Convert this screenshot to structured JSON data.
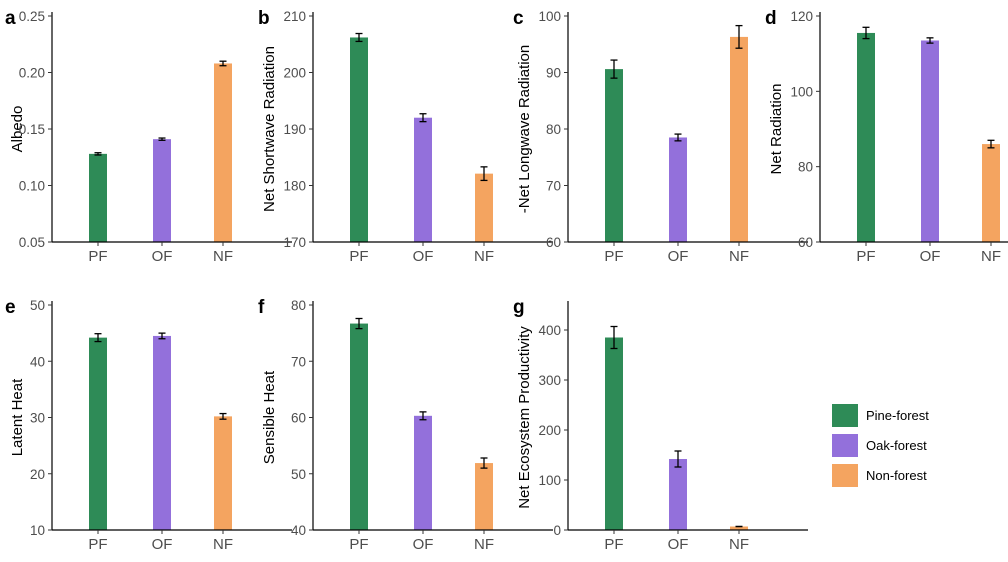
{
  "categories": [
    "PF",
    "OF",
    "NF"
  ],
  "colors": {
    "PF": "#2e8b57",
    "OF": "#9370db",
    "NF": "#f4a460"
  },
  "legend": [
    {
      "label": "Pine-forest",
      "color": "#2e8b57"
    },
    {
      "label": "Oak-forest",
      "color": "#9370db"
    },
    {
      "label": "Non-forest",
      "color": "#f4a460"
    }
  ],
  "chart_data": [
    {
      "type": "bar",
      "letter": "a",
      "ylabel": "Albedo",
      "ylim": [
        0.05,
        0.25
      ],
      "ticks": [
        "0.05",
        "0.10",
        "0.15",
        "0.20",
        "0.25"
      ],
      "categories": [
        "PF",
        "OF",
        "NF"
      ],
      "values": [
        0.128,
        0.141,
        0.208
      ],
      "errors": [
        0.001,
        0.001,
        0.002
      ]
    },
    {
      "type": "bar",
      "letter": "b",
      "ylabel": "Net Shortwave Radiation",
      "ylim": [
        170,
        210
      ],
      "ticks": [
        "170",
        "180",
        "190",
        "200",
        "210"
      ],
      "categories": [
        "PF",
        "OF",
        "NF"
      ],
      "values": [
        206.2,
        192.0,
        182.1
      ],
      "errors": [
        0.7,
        0.7,
        1.2
      ]
    },
    {
      "type": "bar",
      "letter": "c",
      "ylabel": "-Net Longwave Radiation",
      "ylim": [
        60,
        100
      ],
      "ticks": [
        "60",
        "70",
        "80",
        "90",
        "100"
      ],
      "categories": [
        "PF",
        "OF",
        "NF"
      ],
      "values": [
        90.6,
        78.5,
        96.3
      ],
      "errors": [
        1.6,
        0.6,
        2.0
      ]
    },
    {
      "type": "bar",
      "letter": "d",
      "ylabel": "Net Radiation",
      "ylim": [
        60,
        120
      ],
      "ticks": [
        "60",
        "80",
        "100",
        "120"
      ],
      "categories": [
        "PF",
        "OF",
        "NF"
      ],
      "values": [
        115.5,
        113.5,
        86.0
      ],
      "errors": [
        1.5,
        0.7,
        1.0
      ]
    },
    {
      "type": "bar",
      "letter": "e",
      "ylabel": "Latent Heat",
      "ylim": [
        10,
        50
      ],
      "ticks": [
        "10",
        "20",
        "30",
        "40",
        "50"
      ],
      "categories": [
        "PF",
        "OF",
        "NF"
      ],
      "values": [
        44.2,
        44.5,
        30.2
      ],
      "errors": [
        0.7,
        0.5,
        0.5
      ]
    },
    {
      "type": "bar",
      "letter": "f",
      "ylabel": "Sensible Heat",
      "ylim": [
        40,
        80
      ],
      "ticks": [
        "40",
        "50",
        "60",
        "70",
        "80"
      ],
      "categories": [
        "PF",
        "OF",
        "NF"
      ],
      "values": [
        76.7,
        60.3,
        51.9
      ],
      "errors": [
        0.9,
        0.7,
        0.9
      ]
    },
    {
      "type": "bar",
      "letter": "g",
      "ylabel": "Net Ecosystem Productivity",
      "ylim": [
        0,
        450
      ],
      "ticks": [
        "0",
        "100",
        "200",
        "300",
        "400"
      ],
      "categories": [
        "PF",
        "OF",
        "NF"
      ],
      "values": [
        385,
        142,
        7
      ],
      "errors": [
        22,
        16,
        0
      ]
    }
  ]
}
